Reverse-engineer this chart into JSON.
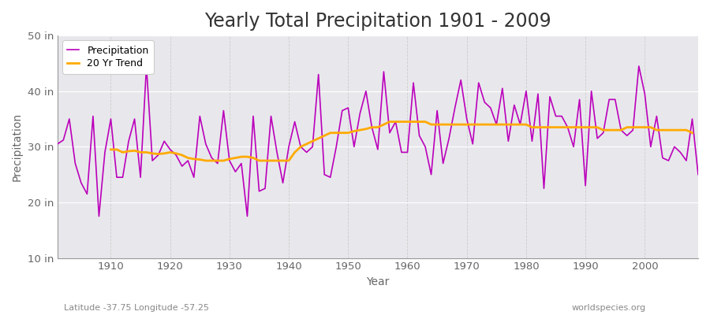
{
  "title": "Yearly Total Precipitation 1901 - 2009",
  "xlabel": "Year",
  "ylabel": "Precipitation",
  "subtitle_left": "Latitude -37.75 Longitude -57.25",
  "subtitle_right": "worldspecies.org",
  "years": [
    1901,
    1902,
    1903,
    1904,
    1905,
    1906,
    1907,
    1908,
    1909,
    1910,
    1911,
    1912,
    1913,
    1914,
    1915,
    1916,
    1917,
    1918,
    1919,
    1920,
    1921,
    1922,
    1923,
    1924,
    1925,
    1926,
    1927,
    1928,
    1929,
    1930,
    1931,
    1932,
    1933,
    1934,
    1935,
    1936,
    1937,
    1938,
    1939,
    1940,
    1941,
    1942,
    1943,
    1944,
    1945,
    1946,
    1947,
    1948,
    1949,
    1950,
    1951,
    1952,
    1953,
    1954,
    1955,
    1956,
    1957,
    1958,
    1959,
    1960,
    1961,
    1962,
    1963,
    1964,
    1965,
    1966,
    1967,
    1968,
    1969,
    1970,
    1971,
    1972,
    1973,
    1974,
    1975,
    1976,
    1977,
    1978,
    1979,
    1980,
    1981,
    1982,
    1983,
    1984,
    1985,
    1986,
    1987,
    1988,
    1989,
    1990,
    1991,
    1992,
    1993,
    1994,
    1995,
    1996,
    1997,
    1998,
    1999,
    2000,
    2001,
    2002,
    2003,
    2004,
    2005,
    2006,
    2007,
    2008,
    2009
  ],
  "precip": [
    30.5,
    31.2,
    35.0,
    27.0,
    23.5,
    21.5,
    35.5,
    17.5,
    29.0,
    35.0,
    24.5,
    24.5,
    31.0,
    35.0,
    24.5,
    44.5,
    27.5,
    28.5,
    31.0,
    29.5,
    28.5,
    26.5,
    27.5,
    24.5,
    35.5,
    30.5,
    28.0,
    27.0,
    36.5,
    27.5,
    25.5,
    27.0,
    17.5,
    35.5,
    22.0,
    22.5,
    35.5,
    29.0,
    23.5,
    30.0,
    34.5,
    30.0,
    29.0,
    30.0,
    43.0,
    25.0,
    24.5,
    30.0,
    36.5,
    37.0,
    30.0,
    36.0,
    40.0,
    33.5,
    29.5,
    43.5,
    32.5,
    34.5,
    29.0,
    29.0,
    41.5,
    32.0,
    30.0,
    25.0,
    36.5,
    27.0,
    31.5,
    37.0,
    42.0,
    35.0,
    30.5,
    41.5,
    38.0,
    37.0,
    34.0,
    40.5,
    31.0,
    37.5,
    34.0,
    40.0,
    31.0,
    39.5,
    22.5,
    39.0,
    35.5,
    35.5,
    33.5,
    30.0,
    38.5,
    23.0,
    40.0,
    31.5,
    32.5,
    38.5,
    38.5,
    33.0,
    32.0,
    33.0,
    44.5,
    39.5,
    30.0,
    35.5,
    28.0,
    27.5,
    30.0,
    29.0,
    27.5,
    35.0,
    25.0
  ],
  "trend": [
    null,
    null,
    null,
    null,
    null,
    null,
    null,
    null,
    null,
    29.5,
    29.5,
    29.0,
    29.2,
    29.3,
    29.0,
    29.0,
    28.8,
    28.7,
    28.8,
    29.0,
    28.8,
    28.5,
    28.0,
    27.8,
    27.7,
    27.5,
    27.5,
    27.5,
    27.5,
    27.8,
    28.0,
    28.2,
    28.2,
    28.0,
    27.5,
    27.5,
    27.5,
    27.5,
    27.5,
    27.5,
    29.0,
    30.0,
    30.5,
    31.0,
    31.5,
    32.0,
    32.5,
    32.5,
    32.5,
    32.5,
    32.8,
    33.0,
    33.2,
    33.5,
    33.5,
    34.0,
    34.5,
    34.5,
    34.5,
    34.5,
    34.5,
    34.5,
    34.5,
    34.0,
    34.0,
    34.0,
    34.0,
    34.0,
    34.0,
    34.0,
    34.0,
    34.0,
    34.0,
    34.0,
    34.0,
    34.0,
    34.0,
    34.0,
    34.0,
    34.0,
    33.5,
    33.5,
    33.5,
    33.5,
    33.5,
    33.5,
    33.5,
    33.5,
    33.5,
    33.5,
    33.5,
    33.5,
    33.0,
    33.0,
    33.0,
    33.0,
    33.5,
    33.5,
    33.5,
    33.5,
    33.5,
    33.0,
    33.0,
    33.0,
    33.0,
    33.0,
    33.0,
    32.5
  ],
  "precip_color": "#bb00bb",
  "trend_color": "#ffaa00",
  "fig_bg_color": "#ffffff",
  "plot_bg_color": "#e8e8ec",
  "grid_color_h": "#ffffff",
  "grid_color_v": "#cccccc",
  "bottom_band_color": "#d8d8dc",
  "ylim": [
    10,
    50
  ],
  "yticks": [
    10,
    20,
    30,
    40,
    50
  ],
  "ytick_labels": [
    "10 in",
    "20 in",
    "30 in",
    "40 in",
    "50 in"
  ],
  "title_fontsize": 17,
  "axis_fontsize": 10,
  "tick_fontsize": 9.5,
  "legend_loc": "upper left",
  "legend_fontsize": 9
}
